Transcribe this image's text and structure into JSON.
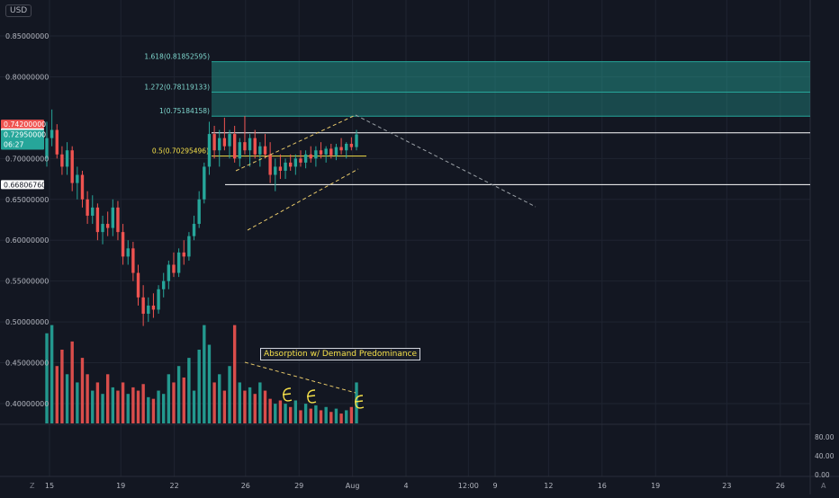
{
  "currency_label": "USD",
  "corner_label": "A",
  "z_label": "Z",
  "colors": {
    "bg": "#131722",
    "grid": "#1f2431",
    "up": "#26a69a",
    "down": "#ef5350",
    "text": "#b2b5be",
    "fib": "#26a69a",
    "yellow": "#f5e04a",
    "white": "#ffffff"
  },
  "chart_data": {
    "type": "candlestick",
    "y_ticks": [
      {
        "value": 0.85,
        "label": "0.85000000"
      },
      {
        "value": 0.8,
        "label": "0.80000000"
      },
      {
        "value": 0.7,
        "label": "0.70000000"
      },
      {
        "value": 0.65,
        "label": "0.65000000"
      },
      {
        "value": 0.6,
        "label": "0.60000000"
      },
      {
        "value": 0.55,
        "label": "0.55000000"
      },
      {
        "value": 0.5,
        "label": "0.50000000"
      },
      {
        "value": 0.45,
        "label": "0.45000000"
      },
      {
        "value": 0.4,
        "label": "0.40000000"
      }
    ],
    "ylim": [
      0.375,
      0.875
    ],
    "x_ticks": [
      {
        "day": 15,
        "label": "15"
      },
      {
        "day": 19,
        "label": "19"
      },
      {
        "day": 22,
        "label": "22"
      },
      {
        "day": 26,
        "label": "26"
      },
      {
        "day": 29,
        "label": "29"
      },
      {
        "day": 32,
        "label": "Aug"
      },
      {
        "day": 35,
        "label": "4"
      },
      {
        "day": 38.5,
        "label": "12:00"
      },
      {
        "day": 40,
        "label": "9"
      },
      {
        "day": 43,
        "label": "12"
      },
      {
        "day": 46,
        "label": "16"
      },
      {
        "day": 49,
        "label": "19"
      },
      {
        "day": 53,
        "label": "23"
      },
      {
        "day": 56,
        "label": "26"
      }
    ],
    "price_labels": [
      {
        "value": 0.742,
        "label": "0.74200000",
        "style": "red"
      },
      {
        "value": 0.73149635,
        "label": "0.73149635",
        "style": "white"
      },
      {
        "value": 0.7295,
        "label": "0.72950000",
        "style": "green",
        "sub": "06:27"
      },
      {
        "value": 0.6680676,
        "label": "0.66806760",
        "style": "white"
      }
    ],
    "fib_levels": [
      {
        "value": 0.81852595,
        "label": "1.618(0.81852595)"
      },
      {
        "value": 0.78119133,
        "label": "1.272(0.78119133)"
      },
      {
        "value": 0.75184158,
        "label": "1(0.75184158)"
      },
      {
        "value": 0.70295496,
        "label": "0.5(0.70295496)"
      }
    ],
    "horizontal_levels": [
      0.73149635,
      0.6680676
    ],
    "annotation": "Absorption w/ Demand Predominance",
    "volume_ticks": [
      {
        "value": 80,
        "label": "80.00"
      },
      {
        "value": 40,
        "label": "40.00"
      },
      {
        "value": 0,
        "label": "0.00"
      }
    ],
    "candles": [
      [
        0.7,
        0.745,
        0.69,
        0.725
      ],
      [
        0.725,
        0.76,
        0.715,
        0.735
      ],
      [
        0.735,
        0.742,
        0.7,
        0.705
      ],
      [
        0.705,
        0.715,
        0.68,
        0.69
      ],
      [
        0.69,
        0.72,
        0.68,
        0.71
      ],
      [
        0.71,
        0.715,
        0.66,
        0.67
      ],
      [
        0.67,
        0.69,
        0.65,
        0.68
      ],
      [
        0.68,
        0.685,
        0.64,
        0.65
      ],
      [
        0.65,
        0.66,
        0.62,
        0.63
      ],
      [
        0.63,
        0.655,
        0.62,
        0.64
      ],
      [
        0.64,
        0.645,
        0.6,
        0.61
      ],
      [
        0.61,
        0.63,
        0.595,
        0.62
      ],
      [
        0.62,
        0.635,
        0.605,
        0.615
      ],
      [
        0.615,
        0.65,
        0.605,
        0.64
      ],
      [
        0.64,
        0.648,
        0.6,
        0.61
      ],
      [
        0.61,
        0.62,
        0.57,
        0.58
      ],
      [
        0.58,
        0.6,
        0.57,
        0.59
      ],
      [
        0.59,
        0.598,
        0.55,
        0.56
      ],
      [
        0.56,
        0.57,
        0.52,
        0.53
      ],
      [
        0.53,
        0.545,
        0.495,
        0.51
      ],
      [
        0.51,
        0.53,
        0.5,
        0.52
      ],
      [
        0.52,
        0.535,
        0.505,
        0.515
      ],
      [
        0.515,
        0.545,
        0.51,
        0.54
      ],
      [
        0.54,
        0.56,
        0.53,
        0.55
      ],
      [
        0.55,
        0.575,
        0.54,
        0.57
      ],
      [
        0.57,
        0.585,
        0.555,
        0.56
      ],
      [
        0.56,
        0.59,
        0.555,
        0.585
      ],
      [
        0.585,
        0.6,
        0.57,
        0.58
      ],
      [
        0.58,
        0.61,
        0.575,
        0.605
      ],
      [
        0.605,
        0.63,
        0.6,
        0.62
      ],
      [
        0.62,
        0.66,
        0.615,
        0.65
      ],
      [
        0.65,
        0.695,
        0.645,
        0.69
      ],
      [
        0.69,
        0.745,
        0.68,
        0.73
      ],
      [
        0.73,
        0.74,
        0.7,
        0.71
      ],
      [
        0.71,
        0.735,
        0.69,
        0.725
      ],
      [
        0.725,
        0.75,
        0.71,
        0.715
      ],
      [
        0.715,
        0.735,
        0.7,
        0.73
      ],
      [
        0.73,
        0.74,
        0.695,
        0.7
      ],
      [
        0.7,
        0.725,
        0.69,
        0.72
      ],
      [
        0.72,
        0.752,
        0.705,
        0.71
      ],
      [
        0.71,
        0.73,
        0.69,
        0.725
      ],
      [
        0.725,
        0.735,
        0.7,
        0.705
      ],
      [
        0.705,
        0.72,
        0.69,
        0.715
      ],
      [
        0.715,
        0.73,
        0.7,
        0.705
      ],
      [
        0.705,
        0.72,
        0.67,
        0.68
      ],
      [
        0.68,
        0.7,
        0.66,
        0.69
      ],
      [
        0.69,
        0.705,
        0.675,
        0.685
      ],
      [
        0.685,
        0.7,
        0.675,
        0.695
      ],
      [
        0.695,
        0.705,
        0.685,
        0.69
      ],
      [
        0.69,
        0.705,
        0.68,
        0.7
      ],
      [
        0.7,
        0.71,
        0.69,
        0.695
      ],
      [
        0.695,
        0.71,
        0.688,
        0.705
      ],
      [
        0.705,
        0.715,
        0.695,
        0.7
      ],
      [
        0.7,
        0.715,
        0.69,
        0.71
      ],
      [
        0.71,
        0.72,
        0.7,
        0.705
      ],
      [
        0.705,
        0.715,
        0.695,
        0.712
      ],
      [
        0.712,
        0.718,
        0.7,
        0.704
      ],
      [
        0.704,
        0.718,
        0.698,
        0.714
      ],
      [
        0.714,
        0.725,
        0.705,
        0.71
      ],
      [
        0.71,
        0.72,
        0.7,
        0.718
      ],
      [
        0.718,
        0.726,
        0.71,
        0.714
      ],
      [
        0.714,
        0.735,
        0.71,
        0.7295
      ]
    ],
    "volumes": [
      55,
      60,
      35,
      45,
      30,
      50,
      25,
      40,
      30,
      20,
      25,
      18,
      30,
      22,
      20,
      25,
      18,
      22,
      20,
      24,
      16,
      15,
      20,
      18,
      30,
      25,
      35,
      28,
      40,
      20,
      45,
      60,
      48,
      25,
      30,
      20,
      35,
      60,
      25,
      20,
      22,
      18,
      25,
      20,
      15,
      12,
      14,
      12,
      10,
      14,
      8,
      12,
      9,
      11,
      8,
      10,
      7,
      9,
      6,
      8,
      10,
      25
    ]
  }
}
